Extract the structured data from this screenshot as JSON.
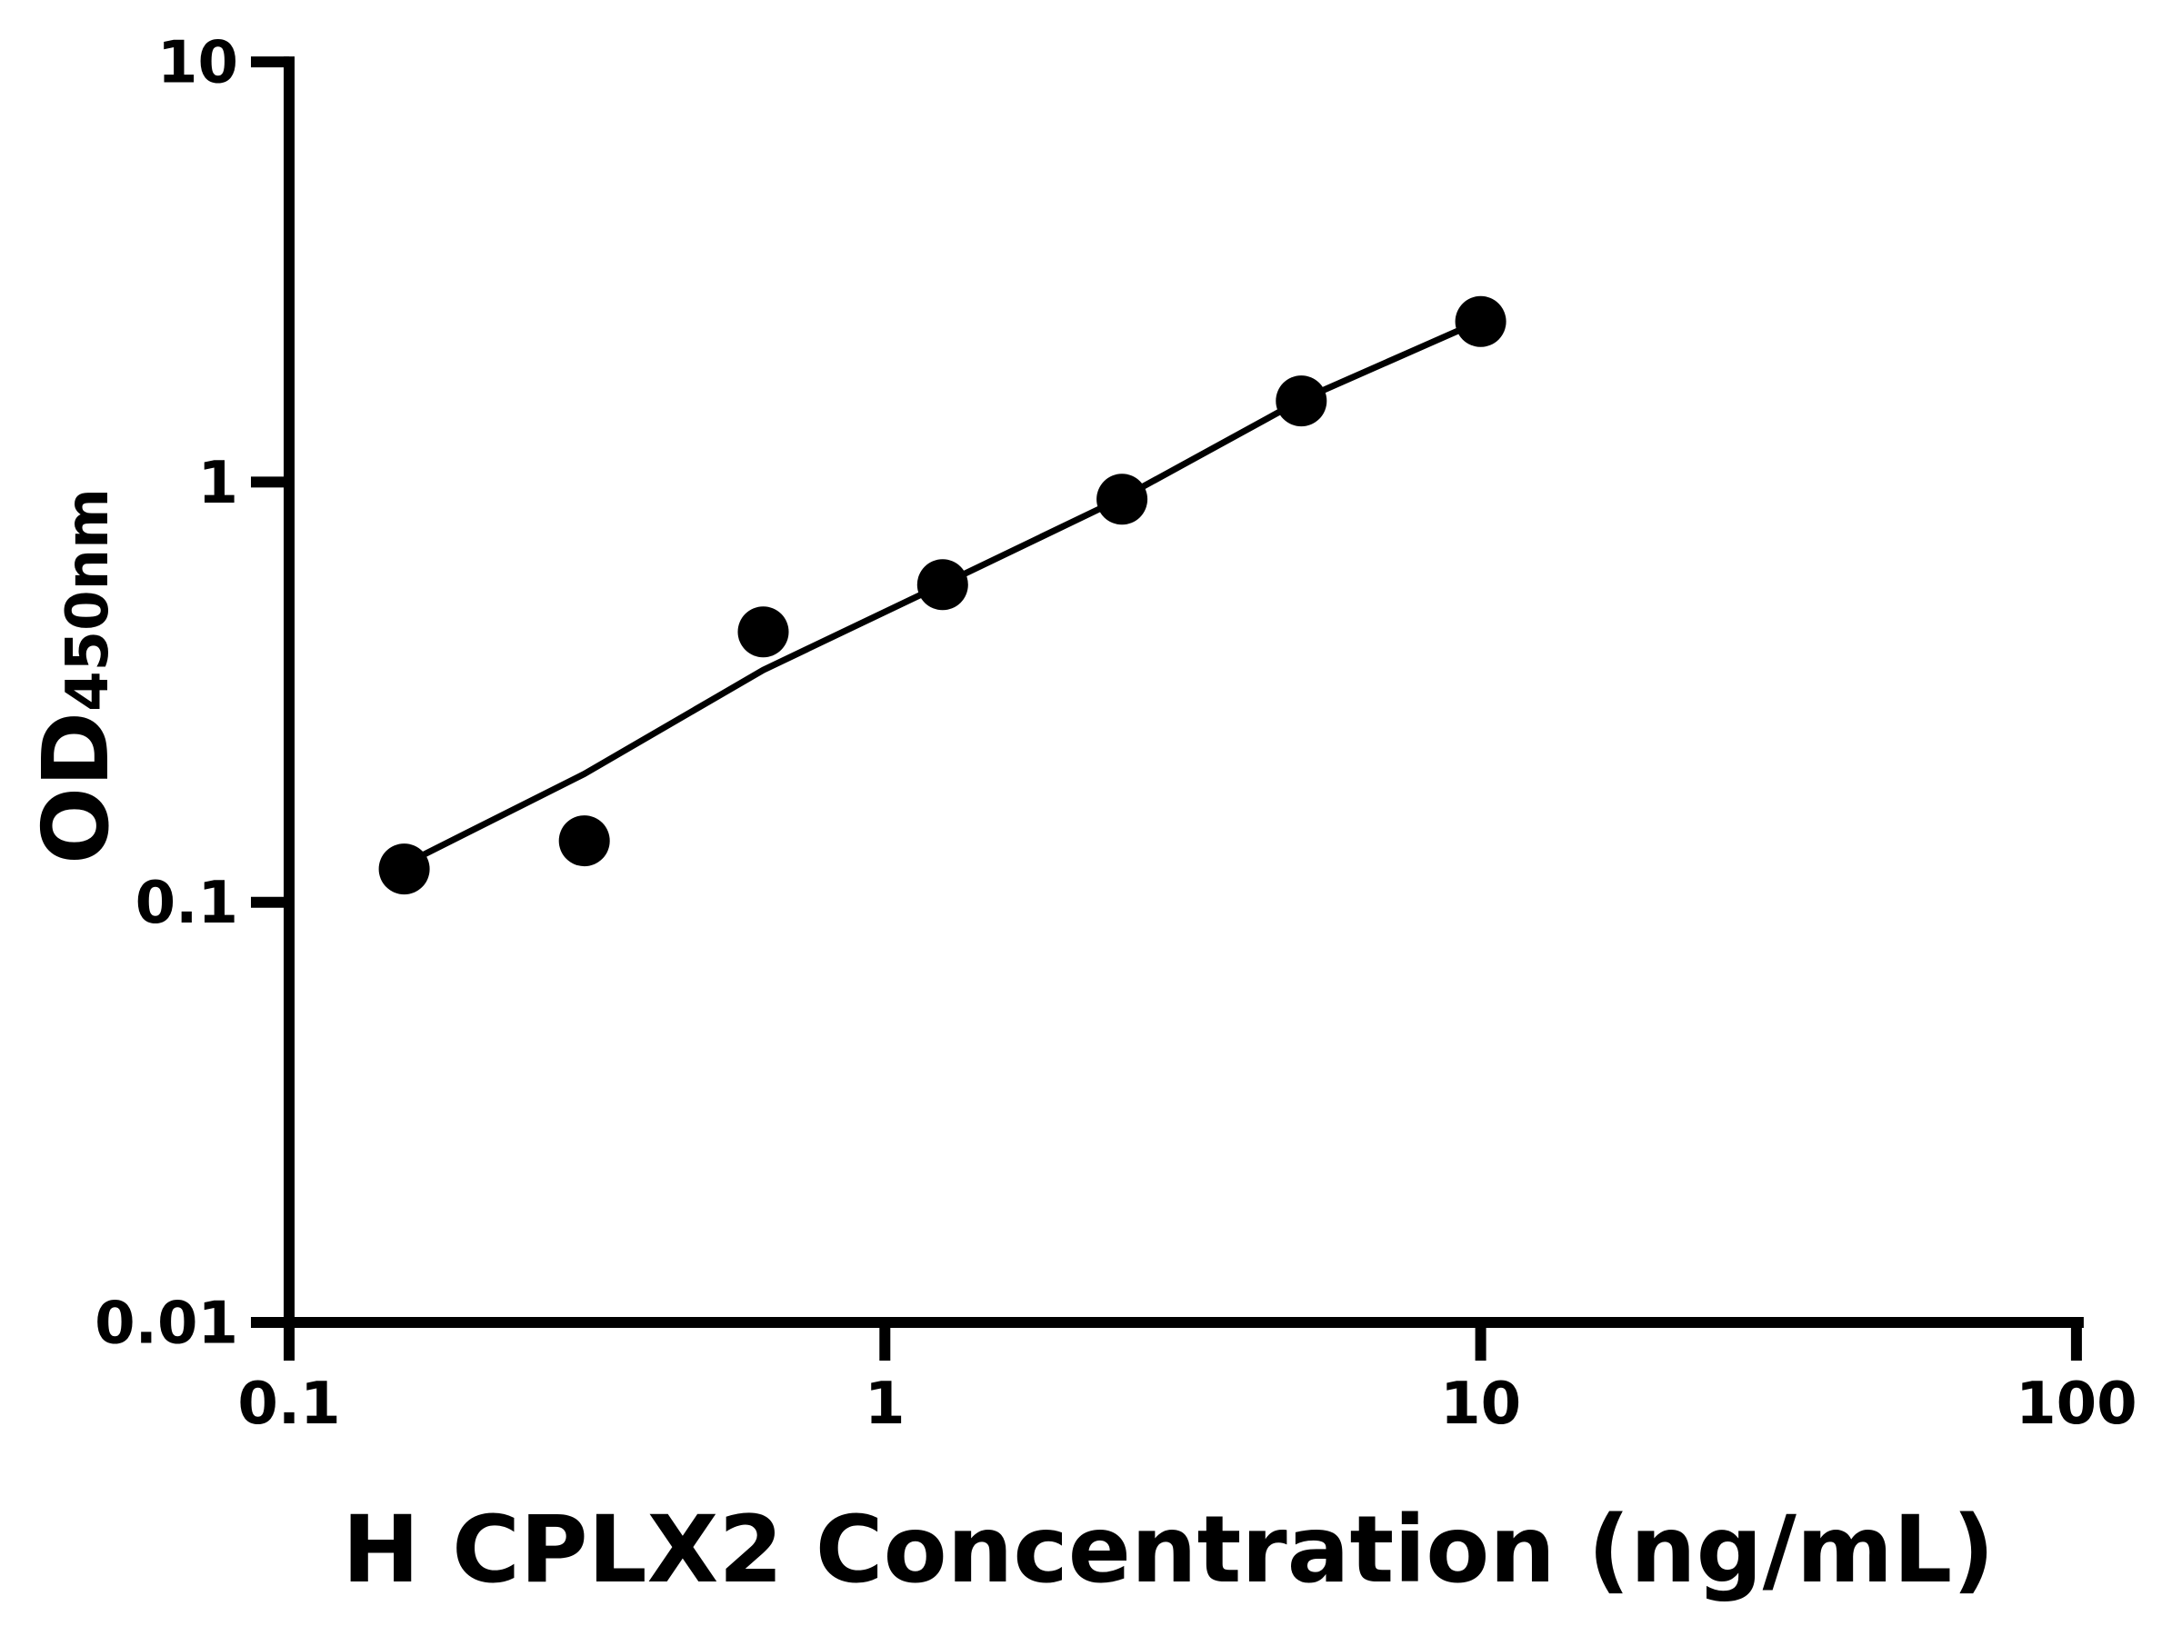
{
  "figure": {
    "background_color": "#ffffff",
    "ink_color": "#000000"
  },
  "chart_data": {
    "type": "scatter",
    "title": "",
    "xlabel": "H CPLX2 Concentration (ng/mL)",
    "ylabel": "OD",
    "ylabel_subscript": "450nm",
    "x_scale": "log10",
    "y_scale": "log10",
    "xlim": [
      0.1,
      100
    ],
    "ylim": [
      0.01,
      10
    ],
    "grid": false,
    "legend": "none",
    "marker_style": "filled-circle",
    "x_ticks": [
      {
        "value": 0.1,
        "label": "0.1"
      },
      {
        "value": 1,
        "label": "1"
      },
      {
        "value": 10,
        "label": "10"
      },
      {
        "value": 100,
        "label": "100"
      }
    ],
    "y_ticks": [
      {
        "value": 0.01,
        "label": "0.01"
      },
      {
        "value": 0.1,
        "label": "0.1"
      },
      {
        "value": 1,
        "label": "1"
      },
      {
        "value": 10,
        "label": "10"
      }
    ],
    "series": [
      {
        "name": "standard-data-points",
        "type": "scatter",
        "color": "#000000",
        "points": [
          {
            "x": 0.156,
            "y": 0.12
          },
          {
            "x": 0.313,
            "y": 0.14
          },
          {
            "x": 0.625,
            "y": 0.44
          },
          {
            "x": 1.25,
            "y": 0.57
          },
          {
            "x": 2.5,
            "y": 0.91
          },
          {
            "x": 5,
            "y": 1.56
          },
          {
            "x": 10,
            "y": 2.41
          }
        ]
      },
      {
        "name": "fitted-standard-curve",
        "type": "line",
        "color": "#000000",
        "points": [
          {
            "x": 0.156,
            "y": 0.123
          },
          {
            "x": 0.313,
            "y": 0.202
          },
          {
            "x": 0.625,
            "y": 0.357
          },
          {
            "x": 1.25,
            "y": 0.571
          },
          {
            "x": 2.5,
            "y": 0.916
          },
          {
            "x": 5,
            "y": 1.569
          },
          {
            "x": 10,
            "y": 2.42
          }
        ]
      }
    ]
  }
}
